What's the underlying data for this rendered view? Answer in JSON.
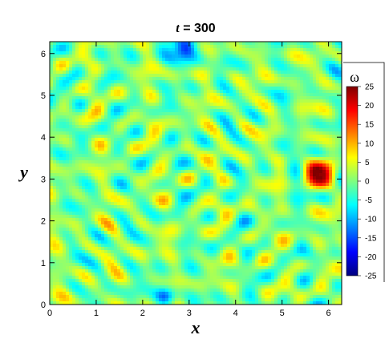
{
  "chart_data": {
    "type": "heatmap",
    "title_var": "t",
    "title_rest": " = 300",
    "xlabel": "x",
    "ylabel": "y",
    "xlim": [
      0,
      6.283
    ],
    "ylim": [
      0,
      6.283
    ],
    "x_ticks": [
      "0",
      "1",
      "2",
      "3",
      "4",
      "5",
      "6"
    ],
    "y_ticks": [
      "0",
      "1",
      "2",
      "3",
      "4",
      "5",
      "6"
    ],
    "colorbar": {
      "label": "ω",
      "min": -25,
      "max": 25,
      "ticks": [
        "25",
        "20",
        "15",
        "10",
        "5",
        "0",
        "-5",
        "-10",
        "-15",
        "-20",
        "-25"
      ],
      "colors": [
        "#00007f",
        "#0000ff",
        "#007fff",
        "#00ffff",
        "#7fff7f",
        "#ffff00",
        "#ff7f00",
        "#ff0000",
        "#7f0000"
      ]
    },
    "field_description": "vorticity field with a large positive vortex near (5.8, 3.1), negative vortex near (2.9, 6.1), X-shaped shear bands crossing near (2.8, 3.0)"
  }
}
